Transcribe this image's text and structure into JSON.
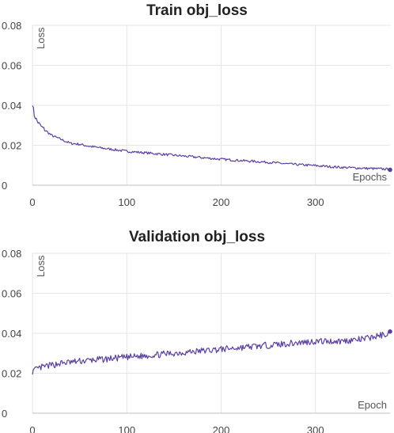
{
  "chart_data": [
    {
      "type": "line",
      "title": "Train obj_loss",
      "xlabel": "Epochs",
      "ylabel": "Loss",
      "xlim": [
        0,
        379
      ],
      "ylim": [
        0,
        0.08
      ],
      "xticks": [
        "0",
        "100",
        "200",
        "300"
      ],
      "yticks": [
        "0",
        "0.02",
        "0.04",
        "0.06",
        "0.08"
      ],
      "grid": true,
      "series": [
        {
          "color": "#5b3fa0",
          "x": [
            0,
            2,
            5,
            10,
            15,
            20,
            30,
            40,
            50,
            60,
            75,
            100,
            125,
            150,
            175,
            200,
            225,
            250,
            275,
            300,
            325,
            350,
            379
          ],
          "y": [
            0.041,
            0.035,
            0.032,
            0.029,
            0.027,
            0.025,
            0.023,
            0.021,
            0.0205,
            0.0195,
            0.0185,
            0.017,
            0.016,
            0.015,
            0.014,
            0.013,
            0.0122,
            0.0115,
            0.0105,
            0.0098,
            0.009,
            0.0085,
            0.008
          ]
        }
      ]
    },
    {
      "type": "line",
      "title": "Validation obj_loss",
      "xlabel": "Epoch",
      "ylabel": "Loss",
      "xlim": [
        0,
        379
      ],
      "ylim": [
        0,
        0.08
      ],
      "xticks": [
        "0",
        "100",
        "200",
        "300"
      ],
      "yticks": [
        "0",
        "0.02",
        "0.04",
        "0.06",
        "0.08"
      ],
      "grid": true,
      "series": [
        {
          "color": "#5b3fa0",
          "x": [
            0,
            5,
            10,
            20,
            30,
            50,
            75,
            100,
            125,
            150,
            175,
            200,
            225,
            250,
            275,
            300,
            325,
            350,
            379
          ],
          "y": [
            0.021,
            0.022,
            0.023,
            0.024,
            0.025,
            0.026,
            0.027,
            0.028,
            0.029,
            0.03,
            0.031,
            0.032,
            0.033,
            0.034,
            0.035,
            0.036,
            0.036,
            0.037,
            0.04
          ]
        }
      ]
    }
  ]
}
